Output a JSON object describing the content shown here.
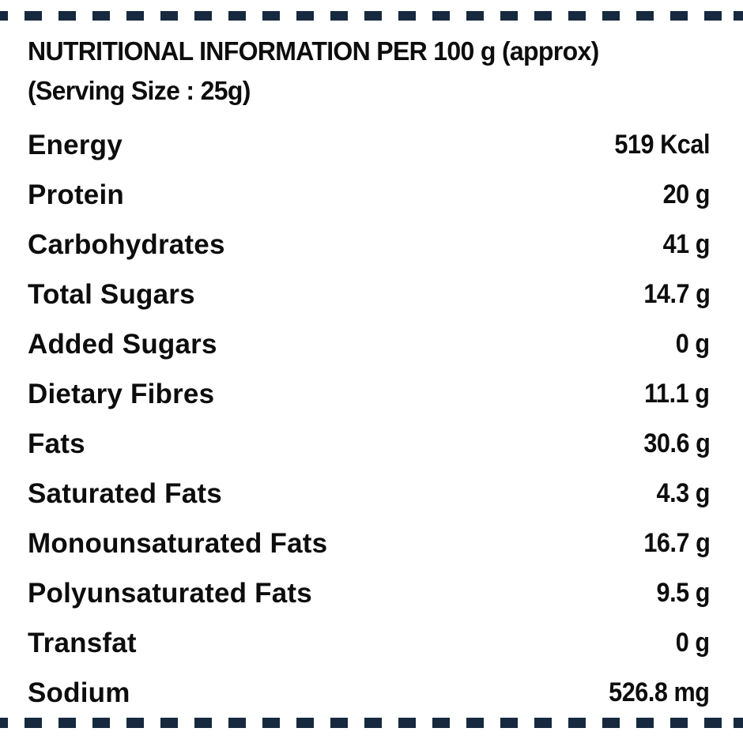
{
  "page": {
    "background": "#ffffff",
    "dash_color": "#16293f",
    "text_color": "#0d0d0d"
  },
  "label": {
    "title": "NUTRITIONAL INFORMATION PER 100 g (approx)",
    "subtitle": "(Serving Size : 25g)",
    "rows": [
      {
        "name": "Energy",
        "value": "519 Kcal"
      },
      {
        "name": "Protein",
        "value": "20 g"
      },
      {
        "name": "Carbohydrates",
        "value": "41 g"
      },
      {
        "name": "Total Sugars",
        "value": "14.7 g"
      },
      {
        "name": "Added Sugars",
        "value": "0 g"
      },
      {
        "name": "Dietary Fibres",
        "value": "11.1 g"
      },
      {
        "name": "Fats",
        "value": "30.6 g"
      },
      {
        "name": "Saturated Fats",
        "value": "4.3 g"
      },
      {
        "name": "Monounsaturated Fats",
        "value": "16.7 g"
      },
      {
        "name": "Polyunsaturated Fats",
        "value": "9.5 g"
      },
      {
        "name": "Transfat",
        "value": "0 g"
      },
      {
        "name": "Sodium",
        "value": "526.8 mg"
      }
    ]
  }
}
